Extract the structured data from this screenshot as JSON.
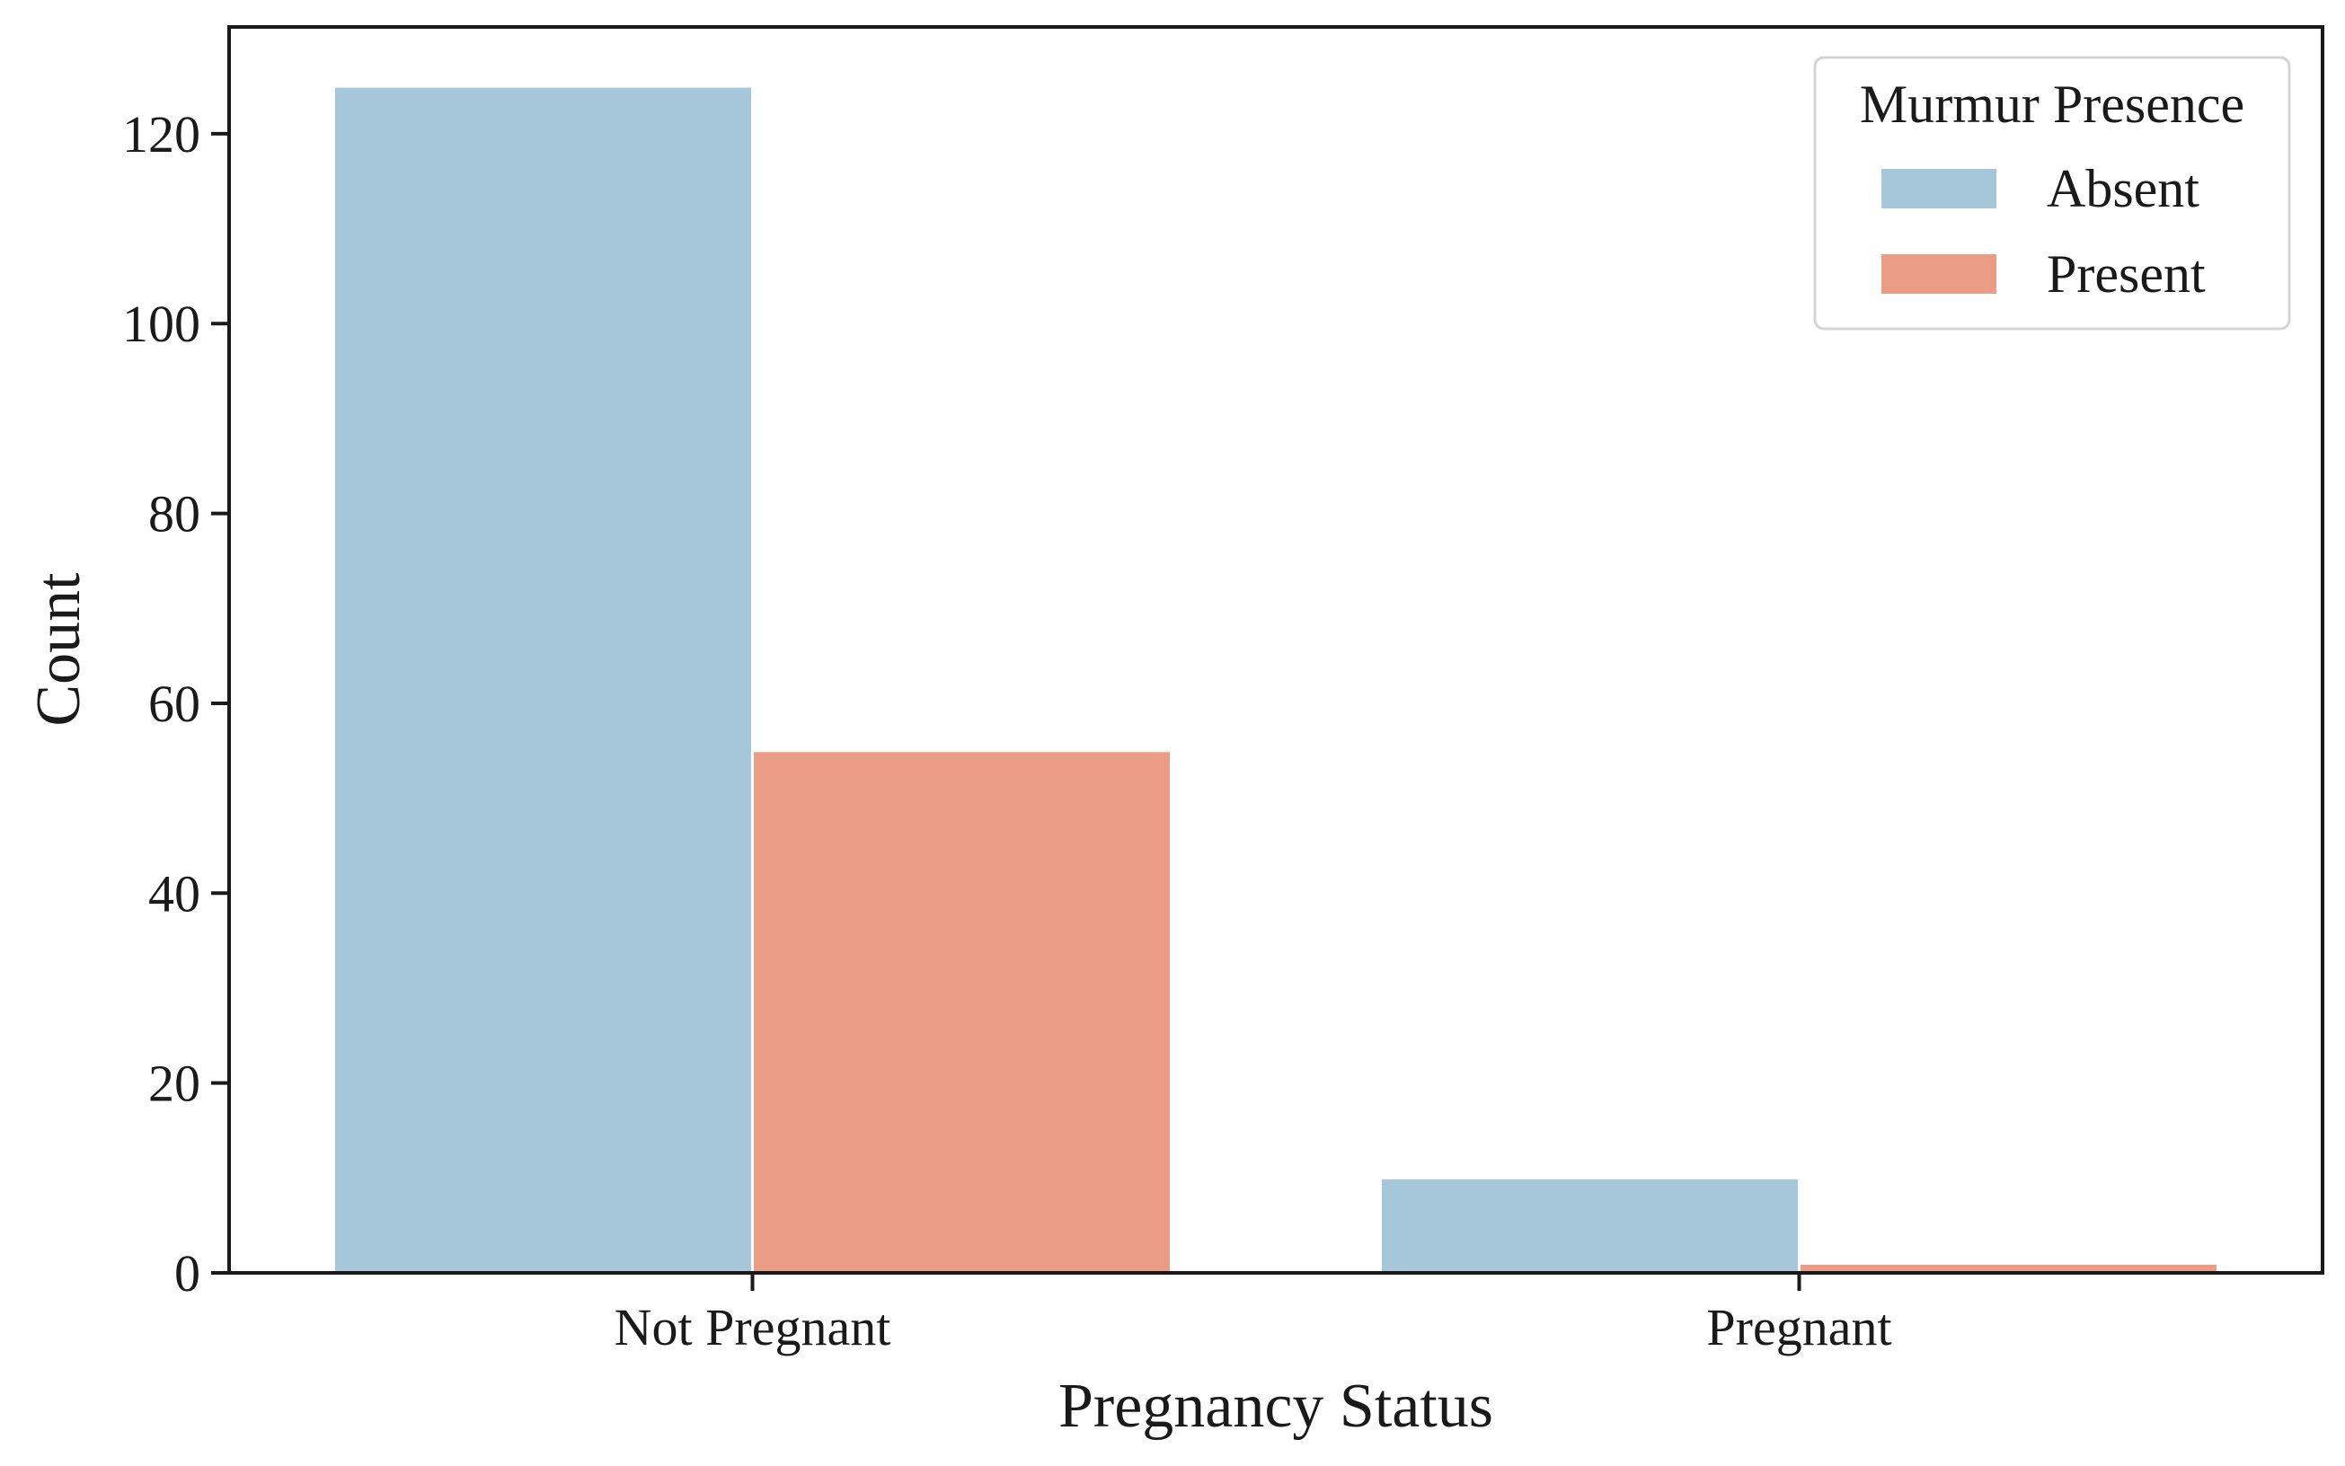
{
  "chart_data": {
    "type": "bar",
    "title": "",
    "xlabel": "Pregnancy Status",
    "ylabel": "Count",
    "categories": [
      "Not Pregnant",
      "Pregnant"
    ],
    "series": [
      {
        "name": "Absent",
        "values": [
          125,
          10
        ],
        "color": "#a6c6da"
      },
      {
        "name": "Present",
        "values": [
          55,
          1
        ],
        "color": "#eb9c85"
      }
    ],
    "ylim": [
      0,
      131.25
    ],
    "yticks": [
      0,
      20,
      40,
      60,
      80,
      100,
      120
    ],
    "grid": false,
    "legend": {
      "title": "Murmur Presence",
      "placement": "top-right"
    }
  }
}
